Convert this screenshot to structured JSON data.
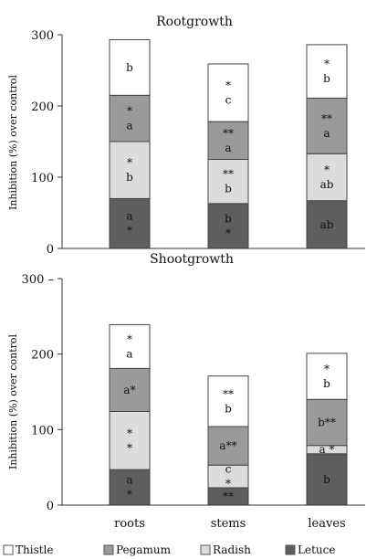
{
  "chart_data": [
    {
      "type": "bar",
      "stacked": true,
      "title": "Rootgrowth",
      "ylabel": "Inhibition (%) over control",
      "xlabel": "",
      "ylim": [
        0,
        300
      ],
      "yticks": [
        "0",
        "100",
        "200",
        "300"
      ],
      "categories": [
        "roots",
        "stems",
        "leaves"
      ],
      "series": [
        {
          "name": "Letuce",
          "color": "#5e5e5e",
          "values": [
            70,
            63,
            67
          ],
          "labels": [
            [
              "a",
              "*"
            ],
            [
              "b",
              "*"
            ],
            [
              "ab"
            ]
          ]
        },
        {
          "name": "Radish",
          "color": "#dcdcdc",
          "values": [
            80,
            62,
            66
          ],
          "labels": [
            [
              "*",
              "b"
            ],
            [
              "**",
              "b"
            ],
            [
              "*",
              "ab"
            ]
          ]
        },
        {
          "name": "Pegamum",
          "color": "#9a9a9a",
          "values": [
            65,
            53,
            78
          ],
          "labels": [
            [
              "*",
              "a"
            ],
            [
              "**",
              "a"
            ],
            [
              "**",
              "a"
            ]
          ]
        },
        {
          "name": "Thistle",
          "color": "#ffffff",
          "values": [
            78,
            81,
            75
          ],
          "labels": [
            [
              "b"
            ],
            [
              "*",
              "c"
            ],
            [
              "*",
              "b"
            ]
          ]
        }
      ],
      "grid": false,
      "legend": "bottom"
    },
    {
      "type": "bar",
      "stacked": true,
      "title": "Shootgrowth",
      "ylabel": "Inhibition (%) over control",
      "xlabel": "",
      "ylim": [
        0,
        300
      ],
      "yticks": [
        "0",
        "100",
        "200",
        "300"
      ],
      "categories": [
        "roots",
        "stems",
        "leaves"
      ],
      "series": [
        {
          "name": "Letuce",
          "color": "#5e5e5e",
          "values": [
            47,
            23,
            68
          ],
          "labels": [
            [
              "a",
              "*"
            ],
            [
              "**"
            ],
            [
              "b"
            ]
          ]
        },
        {
          "name": "Radish",
          "color": "#dcdcdc",
          "values": [
            77,
            30,
            11
          ],
          "labels": [
            [
              "*",
              "*"
            ],
            [
              "c",
              "*"
            ],
            [
              "a *"
            ]
          ]
        },
        {
          "name": "Pegamum",
          "color": "#9a9a9a",
          "values": [
            57,
            51,
            61
          ],
          "labels": [
            [
              "a*"
            ],
            [
              "a**"
            ],
            [
              "b**"
            ]
          ]
        },
        {
          "name": "Thistle",
          "color": "#ffffff",
          "values": [
            58,
            67,
            61
          ],
          "labels": [
            [
              "*",
              "a"
            ],
            [
              "**",
              "b"
            ],
            [
              "*",
              "b"
            ]
          ]
        }
      ],
      "grid": false,
      "legend": "bottom"
    }
  ],
  "legend": [
    {
      "label": "Thistle",
      "color": "#ffffff"
    },
    {
      "label": "Pegamum",
      "color": "#9a9a9a"
    },
    {
      "label": "Radish",
      "color": "#dcdcdc"
    },
    {
      "label": "Letuce",
      "color": "#5e5e5e"
    }
  ]
}
